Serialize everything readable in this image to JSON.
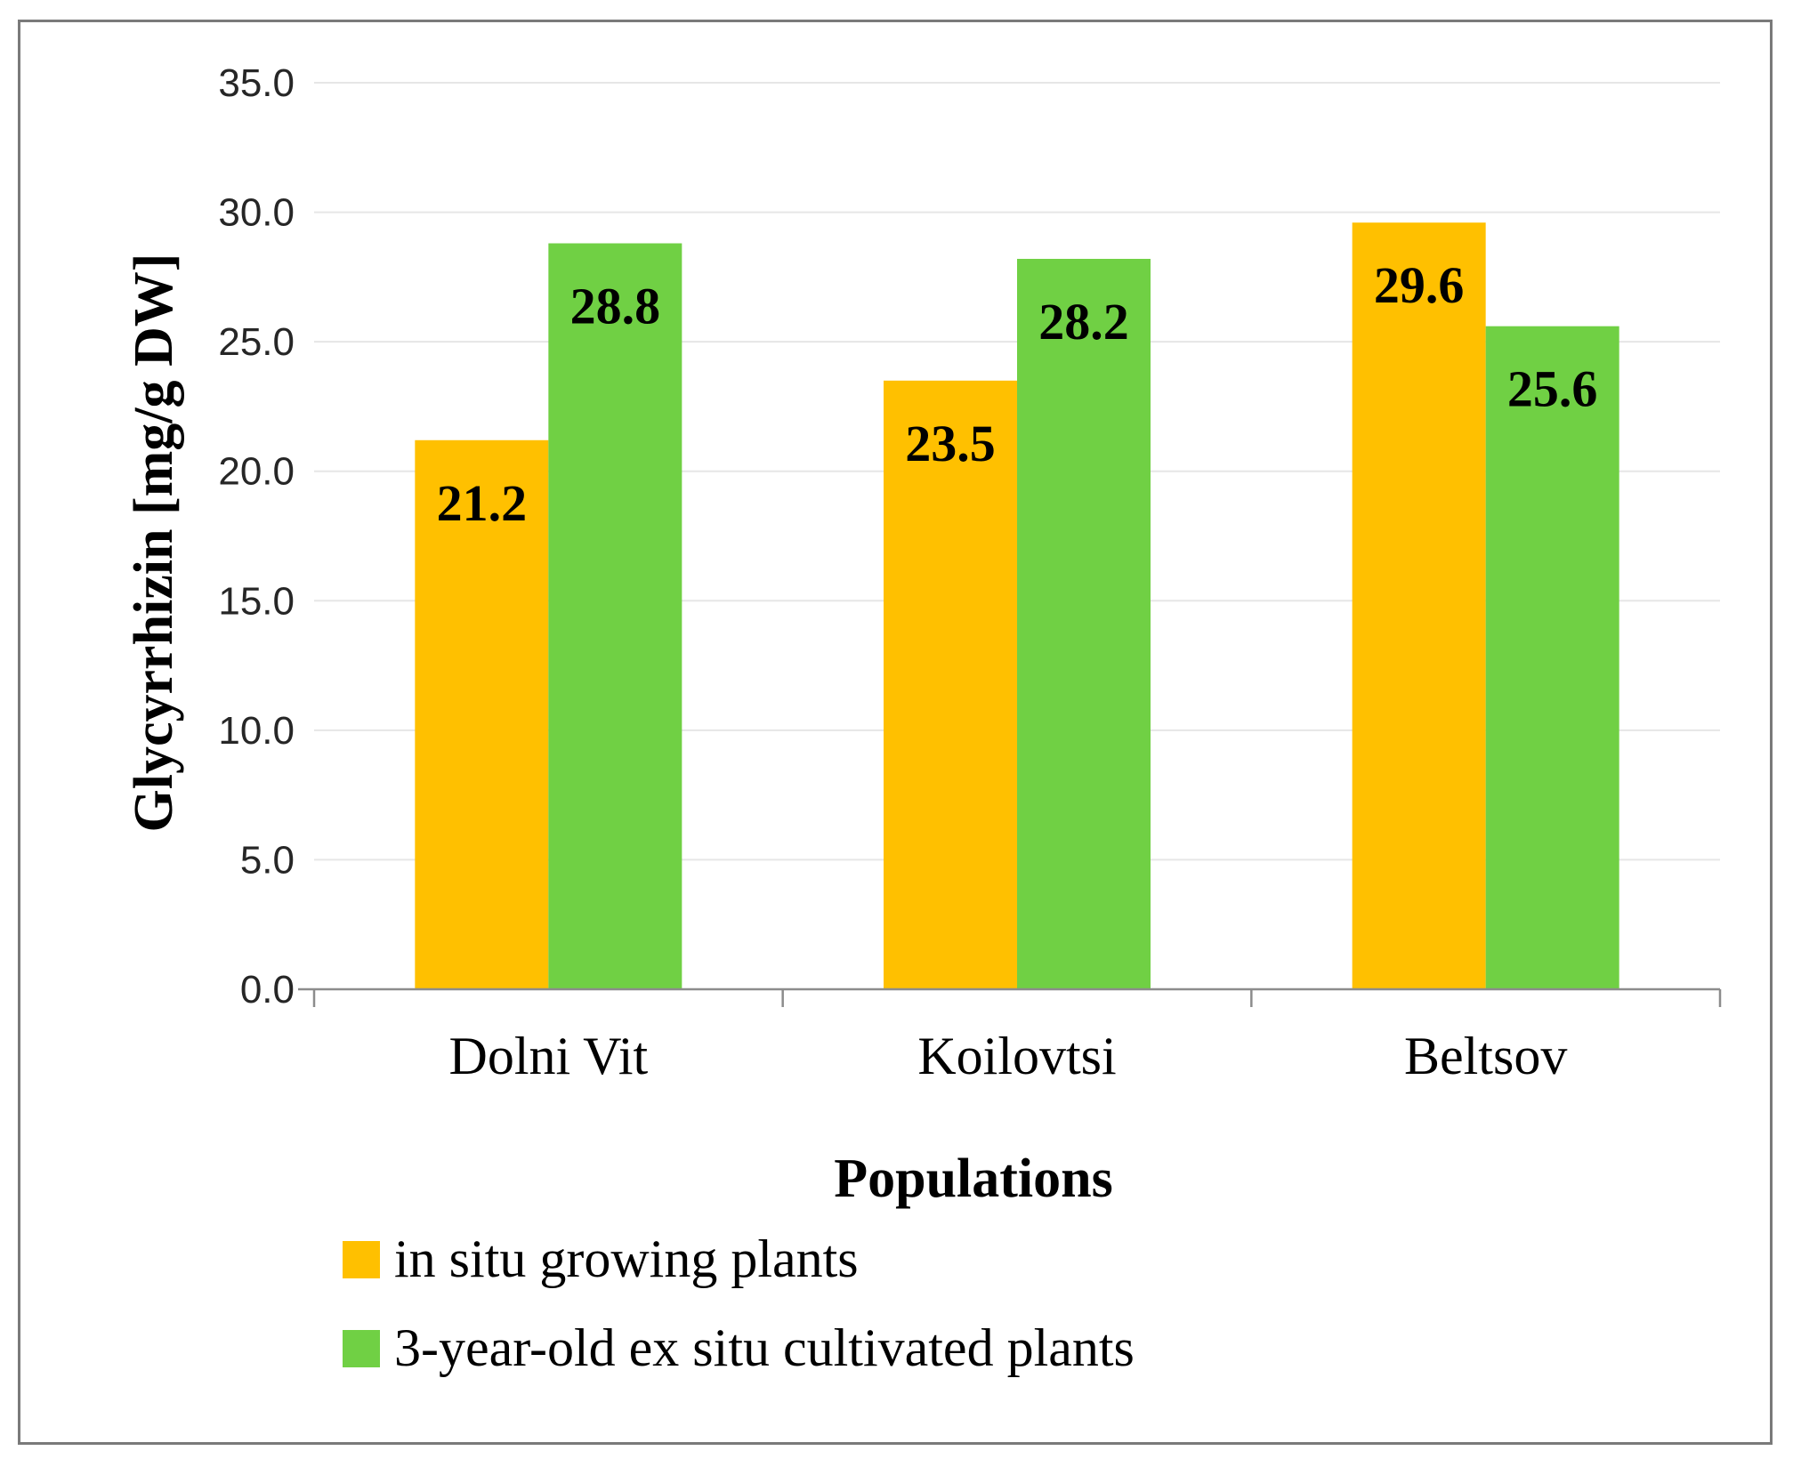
{
  "chart_data": {
    "type": "bar",
    "categories": [
      "Dolni Vit",
      "Koilovtsi",
      "Beltsov"
    ],
    "series": [
      {
        "name": "in situ growing plants",
        "values": [
          21.2,
          23.5,
          29.6
        ],
        "color": "#FFC000"
      },
      {
        "name": "3-year-old ex situ cultivated plants",
        "values": [
          28.8,
          28.2,
          25.6
        ],
        "color": "#70D044"
      }
    ],
    "data_labels": {
      "series_0": [
        "21.2",
        "23.5",
        "29.6"
      ],
      "series_1": [
        "28.8",
        "28.2",
        "25.6"
      ]
    },
    "title": "",
    "xlabel": "Populations",
    "ylabel": "Glycyrrhizin [mg/g DW]",
    "ylim": [
      0,
      35
    ],
    "yticks": [
      0,
      5,
      10,
      15,
      20,
      25,
      30,
      35
    ],
    "ytick_labels": [
      "0.0",
      "5.0",
      "10.0",
      "15.0",
      "20.0",
      "25.0",
      "30.0",
      "35.0"
    ],
    "grid": true,
    "legend_position": "bottom-left"
  }
}
